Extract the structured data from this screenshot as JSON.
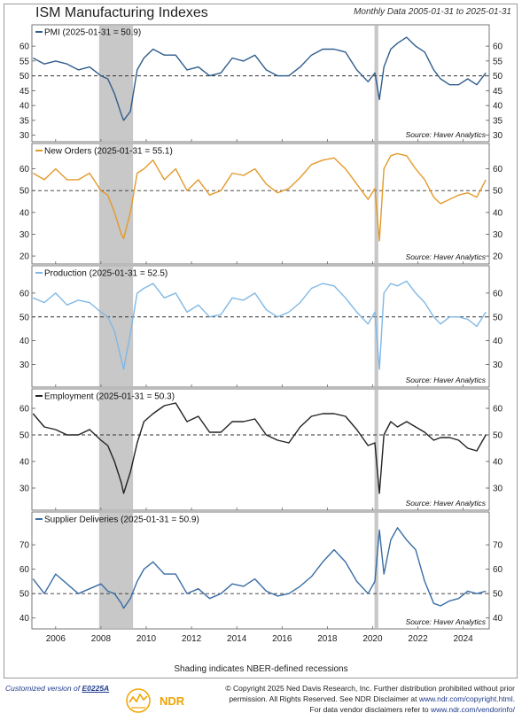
{
  "header": {
    "title": "ISM Manufacturing Indexes",
    "subtitle": "Monthly Data 2005-01-31 to 2025-01-31"
  },
  "footer": {
    "shading_note": "Shading indicates NBER-defined recessions",
    "custom_prefix": "Customized version of",
    "custom_code": "E0225A",
    "ndr_logo": "NDR",
    "copyright_line1": "© Copyright 2025 Ned Davis Research, Inc. Further distribution prohibited without prior",
    "copyright_line2a": "permission. All Rights Reserved. See NDR Disclaimer at",
    "copyright_link1": "www.ndr.com/copyright.html.",
    "copyright_line3a": "For data vendor disclaimers refer to",
    "copyright_link2": "www.ndr.com/vendorinfo/"
  },
  "colors": {
    "pmi": "#2f5d8c",
    "new_orders": "#e39a2c",
    "production": "#7fb8e6",
    "employment": "#222222",
    "supplier": "#3a6ea5",
    "recession": "#c8c8c8"
  },
  "chart_data": [
    {
      "type": "line",
      "name": "PMI",
      "label": "PMI (2025-01-31 = 50.9)",
      "source": "Source:   Haver Analytics",
      "ylim": [
        29,
        66
      ],
      "ticks": [
        30,
        35,
        40,
        45,
        50,
        55,
        60
      ],
      "ref": 50,
      "x": [
        2005.0,
        2005.5,
        2006.0,
        2006.5,
        2007.0,
        2007.5,
        2008.0,
        2008.3,
        2008.6,
        2008.9,
        2009.0,
        2009.3,
        2009.6,
        2009.9,
        2010.3,
        2010.8,
        2011.3,
        2011.8,
        2012.3,
        2012.8,
        2013.3,
        2013.8,
        2014.3,
        2014.8,
        2015.3,
        2015.8,
        2016.3,
        2016.8,
        2017.3,
        2017.8,
        2018.3,
        2018.8,
        2019.3,
        2019.8,
        2020.1,
        2020.3,
        2020.5,
        2020.8,
        2021.1,
        2021.5,
        2021.9,
        2022.3,
        2022.7,
        2023.0,
        2023.4,
        2023.8,
        2024.2,
        2024.6,
        2025.0
      ],
      "y": [
        56,
        54,
        55,
        54,
        52,
        53,
        50,
        49,
        44,
        37,
        35,
        38,
        52,
        56,
        59,
        57,
        57,
        52,
        53,
        50,
        51,
        56,
        55,
        57,
        52,
        50,
        50,
        53,
        57,
        59,
        59,
        58,
        52,
        48,
        51,
        42,
        53,
        59,
        61,
        63,
        60,
        58,
        52,
        49,
        47,
        47,
        49,
        47,
        51
      ]
    },
    {
      "type": "line",
      "name": "New Orders",
      "label": "New Orders (2025-01-31 = 55.1)",
      "source": "Source:   Haver Analytics",
      "ylim": [
        18,
        70
      ],
      "ticks": [
        20,
        30,
        40,
        50,
        60
      ],
      "ref": 50,
      "x": [
        2005.0,
        2005.5,
        2006.0,
        2006.5,
        2007.0,
        2007.5,
        2008.0,
        2008.3,
        2008.6,
        2008.9,
        2009.0,
        2009.3,
        2009.6,
        2009.9,
        2010.3,
        2010.8,
        2011.3,
        2011.8,
        2012.3,
        2012.8,
        2013.3,
        2013.8,
        2014.3,
        2014.8,
        2015.3,
        2015.8,
        2016.3,
        2016.8,
        2017.3,
        2017.8,
        2018.3,
        2018.8,
        2019.3,
        2019.8,
        2020.1,
        2020.3,
        2020.5,
        2020.8,
        2021.1,
        2021.5,
        2021.9,
        2022.3,
        2022.7,
        2023.0,
        2023.4,
        2023.8,
        2024.2,
        2024.6,
        2025.0
      ],
      "y": [
        58,
        55,
        60,
        55,
        55,
        58,
        50,
        48,
        40,
        30,
        28,
        40,
        58,
        60,
        64,
        55,
        60,
        50,
        55,
        48,
        50,
        58,
        57,
        60,
        53,
        49,
        51,
        56,
        62,
        64,
        65,
        60,
        53,
        46,
        51,
        27,
        60,
        66,
        67,
        66,
        60,
        55,
        47,
        44,
        46,
        48,
        49,
        47,
        55
      ]
    },
    {
      "type": "line",
      "name": "Production",
      "label": "Production (2025-01-31 = 52.5)",
      "source": "Source:   Haver Analytics",
      "ylim": [
        22,
        70
      ],
      "ticks": [
        30,
        40,
        50,
        60
      ],
      "ref": 50,
      "x": [
        2005.0,
        2005.5,
        2006.0,
        2006.5,
        2007.0,
        2007.5,
        2008.0,
        2008.3,
        2008.6,
        2008.9,
        2009.0,
        2009.3,
        2009.6,
        2009.9,
        2010.3,
        2010.8,
        2011.3,
        2011.8,
        2012.3,
        2012.8,
        2013.3,
        2013.8,
        2014.3,
        2014.8,
        2015.3,
        2015.8,
        2016.3,
        2016.8,
        2017.3,
        2017.8,
        2018.3,
        2018.8,
        2019.3,
        2019.8,
        2020.1,
        2020.3,
        2020.5,
        2020.8,
        2021.1,
        2021.5,
        2021.9,
        2022.3,
        2022.7,
        2023.0,
        2023.4,
        2023.8,
        2024.2,
        2024.6,
        2025.0
      ],
      "y": [
        58,
        56,
        60,
        55,
        57,
        56,
        52,
        50,
        44,
        32,
        28,
        43,
        60,
        62,
        64,
        58,
        60,
        52,
        55,
        50,
        51,
        58,
        57,
        60,
        53,
        50,
        52,
        56,
        62,
        64,
        63,
        58,
        52,
        47,
        52,
        28,
        60,
        64,
        63,
        65,
        60,
        56,
        50,
        47,
        50,
        50,
        49,
        46,
        52
      ]
    },
    {
      "type": "line",
      "name": "Employment",
      "label": "Employment (2025-01-31 = 50.3)",
      "source": "Source:   Haver Analytics",
      "ylim": [
        23,
        66
      ],
      "ticks": [
        30,
        40,
        50,
        60
      ],
      "ref": 50,
      "x": [
        2005.0,
        2005.5,
        2006.0,
        2006.5,
        2007.0,
        2007.5,
        2008.0,
        2008.3,
        2008.6,
        2008.9,
        2009.0,
        2009.3,
        2009.6,
        2009.9,
        2010.3,
        2010.8,
        2011.3,
        2011.8,
        2012.3,
        2012.8,
        2013.3,
        2013.8,
        2014.3,
        2014.8,
        2015.3,
        2015.8,
        2016.3,
        2016.8,
        2017.3,
        2017.8,
        2018.3,
        2018.8,
        2019.3,
        2019.8,
        2020.1,
        2020.3,
        2020.5,
        2020.8,
        2021.1,
        2021.5,
        2021.9,
        2022.3,
        2022.7,
        2023.0,
        2023.4,
        2023.8,
        2024.2,
        2024.6,
        2025.0
      ],
      "y": [
        58,
        53,
        52,
        50,
        50,
        52,
        48,
        46,
        40,
        32,
        28,
        36,
        47,
        55,
        58,
        61,
        62,
        55,
        57,
        51,
        51,
        55,
        55,
        56,
        50,
        48,
        47,
        53,
        57,
        58,
        58,
        57,
        52,
        46,
        47,
        28,
        50,
        55,
        53,
        55,
        53,
        51,
        48,
        49,
        49,
        48,
        45,
        44,
        50
      ]
    },
    {
      "type": "line",
      "name": "Supplier Deliveries",
      "label": "Supplier Deliveries (2025-01-31 = 50.9)",
      "source": "Source:   Haver Analytics",
      "ylim": [
        37,
        82
      ],
      "ticks": [
        40,
        50,
        60,
        70
      ],
      "ref": 50,
      "x": [
        2005.0,
        2005.5,
        2006.0,
        2006.5,
        2007.0,
        2007.5,
        2008.0,
        2008.3,
        2008.6,
        2008.9,
        2009.0,
        2009.3,
        2009.6,
        2009.9,
        2010.3,
        2010.8,
        2011.3,
        2011.8,
        2012.3,
        2012.8,
        2013.3,
        2013.8,
        2014.3,
        2014.8,
        2015.3,
        2015.8,
        2016.3,
        2016.8,
        2017.3,
        2017.8,
        2018.3,
        2018.8,
        2019.3,
        2019.8,
        2020.1,
        2020.3,
        2020.5,
        2020.8,
        2021.1,
        2021.5,
        2021.9,
        2022.3,
        2022.7,
        2023.0,
        2023.4,
        2023.8,
        2024.2,
        2024.6,
        2025.0
      ],
      "y": [
        56,
        50,
        58,
        54,
        50,
        52,
        54,
        51,
        50,
        46,
        44,
        48,
        55,
        60,
        63,
        58,
        58,
        50,
        52,
        48,
        50,
        54,
        53,
        56,
        51,
        49,
        50,
        53,
        57,
        63,
        68,
        63,
        55,
        50,
        55,
        76,
        58,
        72,
        77,
        72,
        68,
        55,
        46,
        45,
        47,
        48,
        51,
        50,
        51
      ]
    }
  ],
  "x_axis": {
    "xlim": [
      2004.95,
      2025.15
    ],
    "ticks": [
      2006,
      2008,
      2010,
      2012,
      2014,
      2016,
      2018,
      2020,
      2022,
      2024
    ],
    "labels": [
      "2006",
      "2008",
      "2010",
      "2012",
      "2014",
      "2016",
      "2018",
      "2020",
      "2022",
      "2024"
    ]
  },
  "recessions": [
    {
      "start": 2007.917,
      "end": 2009.417
    },
    {
      "start": 2020.083,
      "end": 2020.25
    }
  ]
}
